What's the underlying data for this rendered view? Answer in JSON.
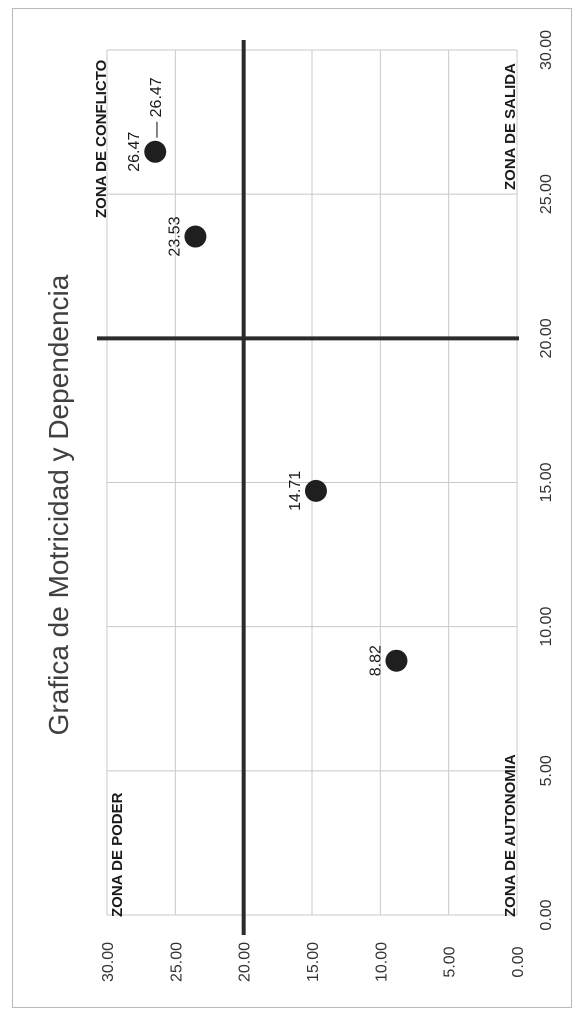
{
  "chart_data": {
    "type": "scatter",
    "title": "Grafica de Motricidad y Dependencia",
    "xlabel": "",
    "ylabel": "",
    "xlim": [
      0,
      30
    ],
    "ylim": [
      0,
      30
    ],
    "x_ticks": [
      "0.00",
      "5.00",
      "10.00",
      "15.00",
      "20.00",
      "25.00",
      "30.00"
    ],
    "y_ticks": [
      "0.00",
      "5.00",
      "10.00",
      "15.00",
      "20.00",
      "25.00",
      "30.00"
    ],
    "grid": true,
    "reference_lines": {
      "x": 20,
      "y": 20
    },
    "points": [
      {
        "x": 8.82,
        "y": 8.82,
        "label": "8.82"
      },
      {
        "x": 14.71,
        "y": 14.71,
        "label": "14.71"
      },
      {
        "x": 23.53,
        "y": 23.53,
        "label": "23.53"
      },
      {
        "x": 26.47,
        "y": 26.47,
        "label": "26.47"
      }
    ],
    "extra_labels": [
      "26.47"
    ],
    "zones": {
      "poder": "ZONA DE PODER",
      "conflicto": "ZONA DE CONFLICTO",
      "autonomia": "ZONA DE AUTONOMIA",
      "salida": "ZONA DE SALIDA"
    },
    "marker_color": "#1f1f1f",
    "grid_color": "#c8c8c8",
    "line_color": "#2b2b2b"
  }
}
